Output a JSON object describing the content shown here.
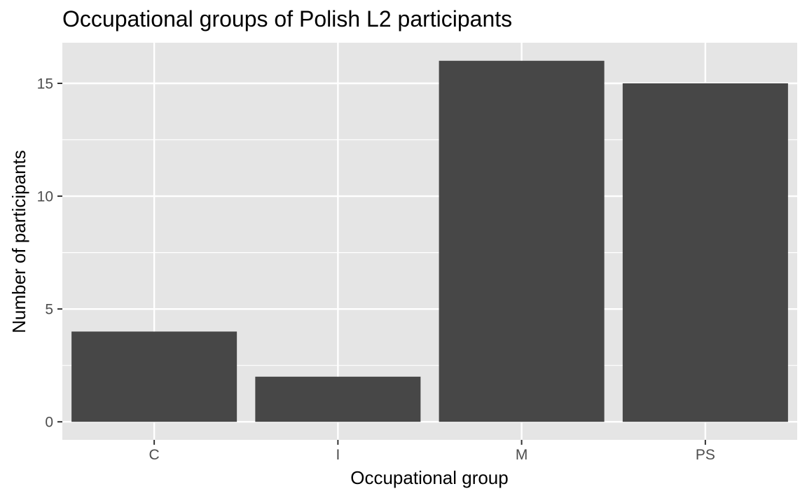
{
  "chart_data": {
    "type": "bar",
    "title": "Occupational groups of Polish L2 participants",
    "xlabel": "Occupational group",
    "ylabel": "Number of participants",
    "categories": [
      "C",
      "I",
      "M",
      "PS"
    ],
    "values": [
      4,
      2,
      16,
      15
    ],
    "ylim": [
      -0.8,
      16.8
    ],
    "yticks": [
      0,
      5,
      10,
      15
    ],
    "grid": true,
    "legend": "none",
    "colors": {
      "bar": "#474747",
      "panel": "#e5e5e5",
      "grid": "#ffffff",
      "tick": "#333333"
    }
  }
}
